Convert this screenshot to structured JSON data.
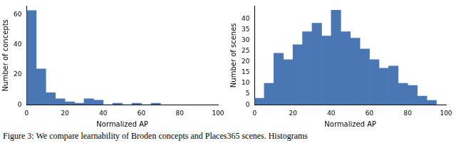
{
  "chart_data": [
    {
      "type": "histogram",
      "x_label": "Normalized AP",
      "y_label": "Number of concepts",
      "bins": [
        0,
        5,
        10,
        15,
        20,
        25,
        30,
        35,
        40,
        45,
        50,
        55,
        60,
        65,
        70
      ],
      "values": [
        63,
        24,
        8,
        4,
        2,
        1,
        4,
        3,
        0,
        1,
        0,
        1,
        0,
        1
      ],
      "color": "#4a77b4",
      "xlim": [
        0,
        100
      ],
      "xticks": [
        0,
        20,
        40,
        60,
        80,
        100
      ],
      "ylim": [
        0,
        66
      ],
      "yticks": [
        0,
        20,
        40,
        60
      ],
      "grid": false
    },
    {
      "type": "histogram",
      "x_label": "Normalized AP",
      "y_label": "Number of scenes",
      "bins": [
        0,
        5,
        10,
        15,
        20,
        25,
        30,
        35,
        40,
        45,
        50,
        55,
        60,
        65,
        70,
        75,
        80,
        85,
        90,
        95
      ],
      "values": [
        3,
        10,
        24,
        21,
        28,
        34,
        38,
        32,
        44,
        34,
        31,
        26,
        21,
        17,
        18,
        10,
        9,
        4,
        2
      ],
      "color": "#4a77b4",
      "xlim": [
        0,
        100
      ],
      "xticks": [
        0,
        20,
        40,
        60,
        80,
        100
      ],
      "ylim": [
        0,
        46
      ],
      "yticks": [
        0,
        5,
        10,
        15,
        20,
        25,
        30,
        35,
        40
      ],
      "grid": false
    }
  ],
  "caption": "Figure 3: We compare learnability of Broden concepts and Places365 scenes. Histograms"
}
